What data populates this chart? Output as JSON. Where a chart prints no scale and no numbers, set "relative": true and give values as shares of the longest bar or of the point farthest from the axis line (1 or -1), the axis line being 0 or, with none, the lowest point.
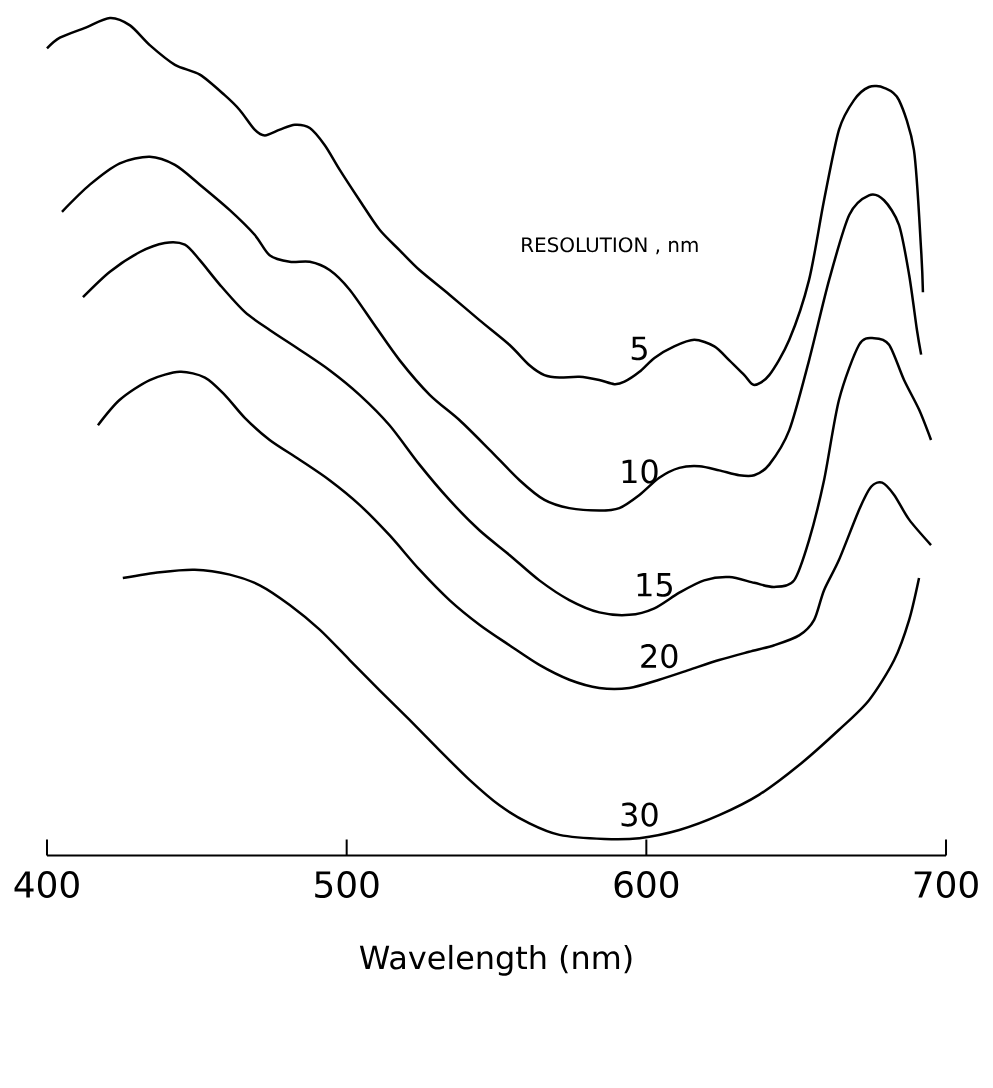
{
  "chart_data": {
    "type": "line",
    "relative": true,
    "xlabel": "Wavelength (nm)",
    "legend_title": "RESOLUTION , nm",
    "xlim": [
      400,
      700
    ],
    "xticks": [
      400,
      500,
      600,
      700
    ],
    "marker": "none",
    "line_style": "solid",
    "series": [
      {
        "name": "5",
        "color": "#000000",
        "x": [
          400,
          404.3,
          412.7,
          421,
          427.7,
          434.3,
          442.7,
          451,
          459.3,
          464.3,
          469.3,
          472.7,
          477.7,
          482.7,
          487.7,
          492.7,
          497.7,
          504.3,
          511,
          517.7,
          524.3,
          534.3,
          544.3,
          554.3,
          561,
          566,
          571,
          577.7,
          584.3,
          589.3,
          592.7,
          597.7,
          602.7,
          609.3,
          616,
          622.7,
          627.7,
          632.7,
          636,
          641,
          647.7,
          654.3,
          659.3,
          664.3,
          669.3,
          674.3,
          679.3,
          684.3,
          689.3,
          691.7,
          692.3
        ],
        "values": [
          0.963,
          0.976,
          0.988,
          1.0,
          0.991,
          0.967,
          0.943,
          0.931,
          0.906,
          0.888,
          0.864,
          0.857,
          0.864,
          0.87,
          0.866,
          0.845,
          0.815,
          0.778,
          0.742,
          0.717,
          0.693,
          0.663,
          0.632,
          0.602,
          0.577,
          0.565,
          0.562,
          0.563,
          0.559,
          0.554,
          0.557,
          0.569,
          0.586,
          0.6,
          0.608,
          0.6,
          0.583,
          0.565,
          0.553,
          0.565,
          0.608,
          0.681,
          0.778,
          0.864,
          0.9,
          0.916,
          0.915,
          0.9,
          0.839,
          0.717,
          0.666
        ]
      },
      {
        "name": "10",
        "color": "#000000",
        "x": [
          405,
          414.3,
          424.3,
          434.3,
          442.7,
          451,
          461,
          469.3,
          474.3,
          481,
          487.7,
          494.3,
          501,
          509.3,
          517.7,
          527.7,
          537.7,
          547.7,
          557.7,
          566,
          574.3,
          584.3,
          591,
          597.7,
          604.3,
          611,
          617.7,
          624.3,
          631,
          636,
          641,
          647.7,
          654.3,
          661,
          667.7,
          674.3,
          679.3,
          684.3,
          687.7,
          690.3,
          691.7
        ],
        "values": [
          0.764,
          0.797,
          0.823,
          0.831,
          0.821,
          0.797,
          0.766,
          0.736,
          0.711,
          0.703,
          0.703,
          0.693,
          0.669,
          0.626,
          0.583,
          0.541,
          0.51,
          0.474,
          0.437,
          0.413,
          0.403,
          0.4,
          0.403,
          0.419,
          0.44,
          0.452,
          0.454,
          0.449,
          0.443,
          0.443,
          0.456,
          0.498,
          0.583,
          0.681,
          0.76,
          0.784,
          0.778,
          0.748,
          0.687,
          0.62,
          0.59
        ]
      },
      {
        "name": "15",
        "color": "#000000",
        "x": [
          412,
          421,
          431,
          439.3,
          446,
          451,
          457.7,
          466,
          474.3,
          484.3,
          494.3,
          504.3,
          514.3,
          524.3,
          534.3,
          544.3,
          554.3,
          564.3,
          574.3,
          584.3,
          594.3,
          602.7,
          611,
          619.3,
          627.7,
          636,
          642.7,
          649.3,
          654.3,
          659.3,
          664.3,
          671,
          676,
          681,
          686,
          691,
          695
        ],
        "values": [
          0.66,
          0.691,
          0.715,
          0.726,
          0.724,
          0.705,
          0.675,
          0.642,
          0.62,
          0.596,
          0.571,
          0.541,
          0.504,
          0.456,
          0.413,
          0.376,
          0.346,
          0.315,
          0.291,
          0.276,
          0.273,
          0.281,
          0.3,
          0.315,
          0.319,
          0.312,
          0.307,
          0.315,
          0.364,
          0.437,
          0.535,
          0.602,
          0.61,
          0.602,
          0.559,
          0.523,
          0.486
        ]
      },
      {
        "name": "20",
        "color": "#000000",
        "x": [
          417,
          424.3,
          434.3,
          444.3,
          452.7,
          459.3,
          466,
          474.3,
          484.3,
          494.3,
          504.3,
          514.3,
          524.3,
          534.3,
          544.3,
          554.3,
          564.3,
          574.3,
          584.3,
          594.3,
          604.3,
          614.3,
          624.3,
          634.3,
          642.7,
          651,
          656,
          659.3,
          664.3,
          671,
          675,
          678.7,
          682.7,
          687.7,
          695
        ],
        "values": [
          0.504,
          0.535,
          0.559,
          0.569,
          0.562,
          0.541,
          0.513,
          0.486,
          0.462,
          0.437,
          0.407,
          0.37,
          0.328,
          0.291,
          0.261,
          0.236,
          0.212,
          0.194,
          0.184,
          0.184,
          0.194,
          0.206,
          0.218,
          0.228,
          0.236,
          0.248,
          0.267,
          0.303,
          0.34,
          0.401,
          0.429,
          0.434,
          0.419,
          0.389,
          0.358
        ]
      },
      {
        "name": "30",
        "color": "#000000",
        "x": [
          425.3,
          437.7,
          449.3,
          461,
          471,
          481,
          491,
          501,
          511,
          521,
          531,
          541,
          551,
          561,
          571,
          586,
          597.7,
          611,
          624.3,
          637.7,
          651,
          664.3,
          674.3,
          682.7,
          687.7,
          691
        ],
        "values": [
          0.318,
          0.325,
          0.328,
          0.322,
          0.309,
          0.285,
          0.255,
          0.218,
          0.181,
          0.145,
          0.108,
          0.072,
          0.041,
          0.019,
          0.005,
          0.0,
          0.001,
          0.011,
          0.029,
          0.054,
          0.09,
          0.133,
          0.169,
          0.218,
          0.267,
          0.318
        ]
      }
    ]
  }
}
